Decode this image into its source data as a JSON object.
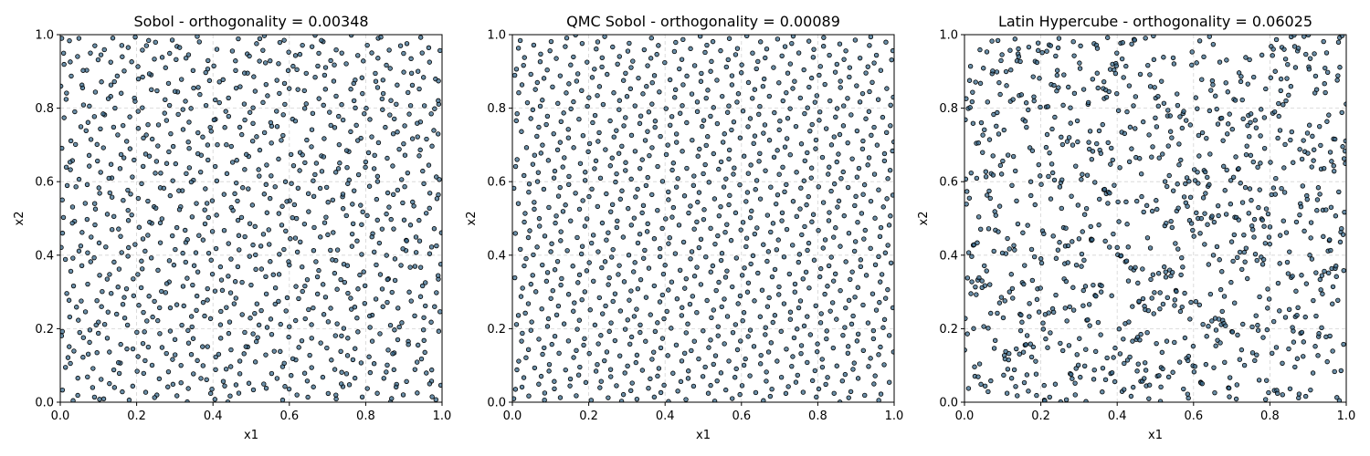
{
  "figure": {
    "background": "#ffffff"
  },
  "style": {
    "marker_fill": "#3a6b8e",
    "marker_edge": "#000000",
    "marker_alpha": 0.75,
    "grid": true,
    "grid_style": "dashed"
  },
  "chart_data": [
    {
      "type": "scatter",
      "title": "Sobol - orthogonality = 0.00348",
      "xlabel": "x1",
      "ylabel": "x2",
      "xlim": [
        0,
        1
      ],
      "ylim": [
        0,
        1
      ],
      "xticks": [
        "0.0",
        "0.2",
        "0.4",
        "0.6",
        "0.8",
        "1.0"
      ],
      "yticks": [
        "0.0",
        "0.2",
        "0.4",
        "0.6",
        "0.8",
        "1.0"
      ],
      "tick_values": [
        0,
        0.2,
        0.4,
        0.6,
        0.8,
        1.0
      ],
      "sampling": "sobol_scrambled",
      "n_points": 1000
    },
    {
      "type": "scatter",
      "title": "QMC Sobol - orthogonality = 0.00089",
      "xlabel": "x1",
      "ylabel": "x2",
      "xlim": [
        0,
        1
      ],
      "ylim": [
        0,
        1
      ],
      "xticks": [
        "0.0",
        "0.2",
        "0.4",
        "0.6",
        "0.8",
        "1.0"
      ],
      "yticks": [
        "0.0",
        "0.2",
        "0.4",
        "0.6",
        "0.8",
        "1.0"
      ],
      "tick_values": [
        0,
        0.2,
        0.4,
        0.6,
        0.8,
        1.0
      ],
      "sampling": "qmc_sobol",
      "n_points": 1000
    },
    {
      "type": "scatter",
      "title": "Latin Hypercube - orthogonality = 0.06025",
      "xlabel": "x1",
      "ylabel": "x2",
      "xlim": [
        0,
        1
      ],
      "ylim": [
        0,
        1
      ],
      "xticks": [
        "0.0",
        "0.2",
        "0.4",
        "0.6",
        "0.8",
        "1.0"
      ],
      "yticks": [
        "0.0",
        "0.2",
        "0.4",
        "0.6",
        "0.8",
        "1.0"
      ],
      "tick_values": [
        0,
        0.2,
        0.4,
        0.6,
        0.8,
        1.0
      ],
      "sampling": "latin_hypercube",
      "n_points": 1000
    }
  ]
}
